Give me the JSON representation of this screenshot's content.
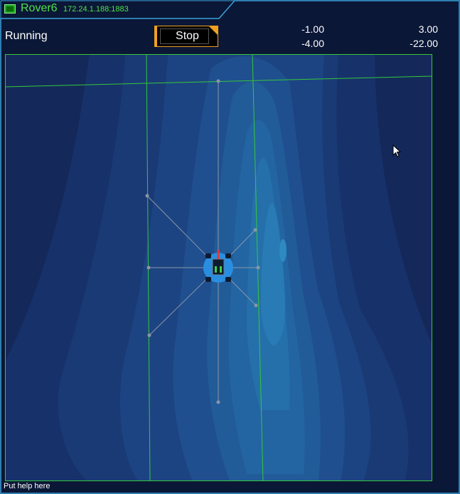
{
  "window": {
    "name": "Rover6",
    "address": "172.24.1.188:1883"
  },
  "controls": {
    "status_text": "Running",
    "stop_label": "Stop"
  },
  "readouts": {
    "left_top": "-1.00",
    "left_bottom": "-4.00",
    "right_top": "3.00",
    "right_bottom": "-22.00"
  },
  "footer": {
    "help_text": "Put help here"
  },
  "colors": {
    "accent_green": "#4ee34e",
    "button_orange": "#f0a020",
    "frame_blue": "#3aa0d8",
    "background": "#0b1736",
    "rover_blue": "#2a8ee0"
  },
  "icons": {
    "window_icon": "window-icon",
    "cursor": "cursor-arrow-icon",
    "rover": "rover-icon"
  }
}
